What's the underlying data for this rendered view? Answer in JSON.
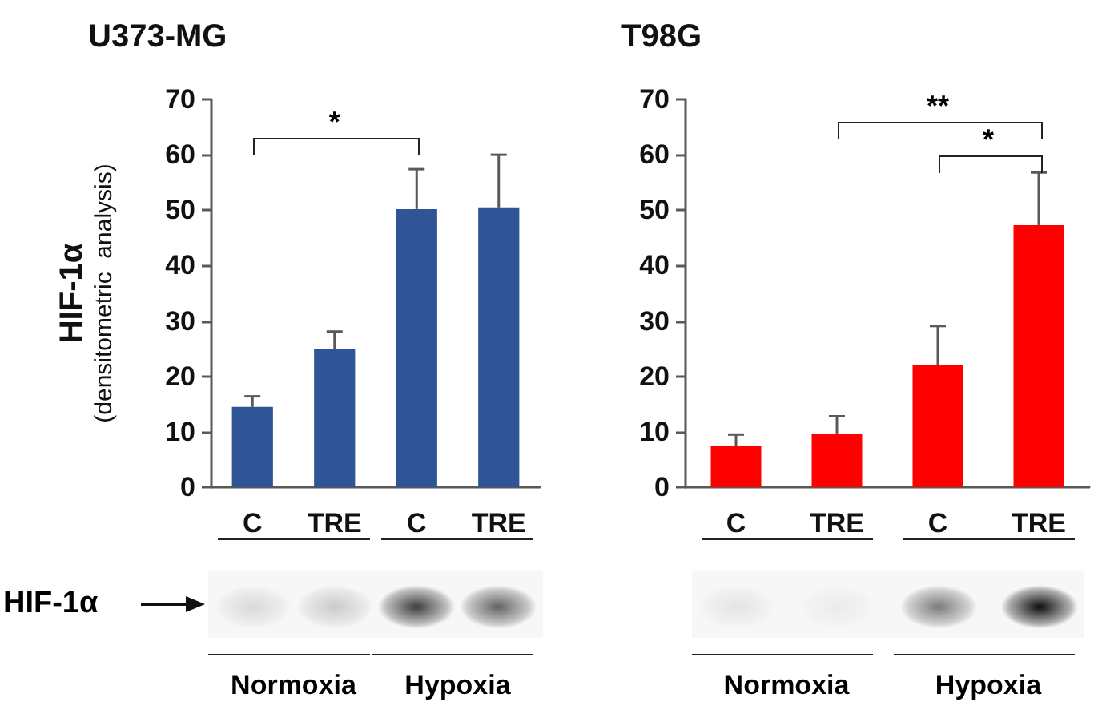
{
  "chart_data": [
    {
      "type": "bar",
      "title": "U373-MG",
      "ylabel": "HIF-1α\n(densitometric  analysis)",
      "categories": [
        "C",
        "TRE",
        "C",
        "TRE"
      ],
      "series": [
        {
          "color": "#2f5597",
          "values": [
            14.5,
            25,
            50.2,
            50.5
          ],
          "errors": [
            [
              14.5,
              16.4
            ],
            [
              25,
              28.1
            ],
            [
              50.2,
              57.4
            ],
            [
              50.5,
              60
            ]
          ]
        }
      ],
      "ylim": [
        0,
        70
      ],
      "yticks": [
        0,
        10,
        20,
        30,
        40,
        50,
        60,
        70
      ],
      "annotations": [
        "*",
        "HIF-1α",
        "Normoxia",
        "Hypoxia"
      ]
    },
    {
      "type": "bar",
      "title": "T98G",
      "categories": [
        "C",
        "TRE",
        "C",
        "TRE"
      ],
      "series": [
        {
          "color": "#ff0000",
          "values": [
            7.5,
            9.7,
            22,
            47.3
          ],
          "errors": [
            [
              7.5,
              9.5
            ],
            [
              9.7,
              12.8
            ],
            [
              22,
              29.1
            ],
            [
              47.3,
              56.8
            ]
          ]
        }
      ],
      "ylim": [
        0,
        70
      ],
      "yticks": [
        0,
        10,
        20,
        30,
        40,
        50,
        60,
        70
      ],
      "annotations": [
        "**",
        "*",
        "Normoxia",
        "Hypoxia"
      ]
    }
  ]
}
